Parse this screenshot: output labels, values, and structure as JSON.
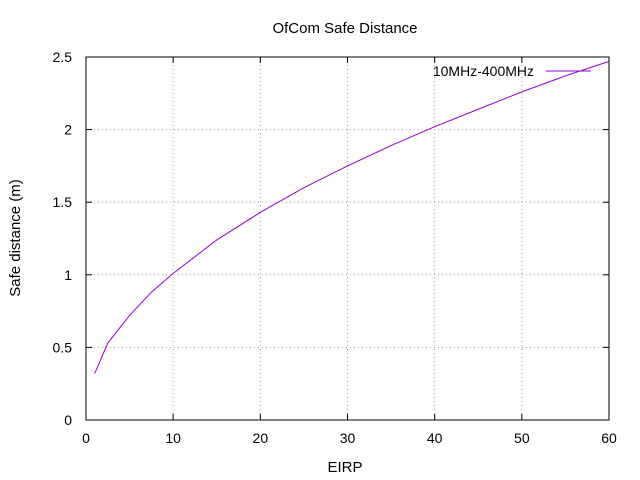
{
  "chart_data": {
    "type": "line",
    "title": "OfCom Safe Distance",
    "xlabel": "EIRP",
    "ylabel": "Safe distance (m)",
    "xlim": [
      0,
      60
    ],
    "ylim": [
      0,
      2.5
    ],
    "xticks": [
      0,
      10,
      20,
      30,
      40,
      50,
      60
    ],
    "yticks": [
      0,
      0.5,
      1,
      1.5,
      2,
      2.5
    ],
    "xtick_labels": [
      "0",
      "10",
      "20",
      "30",
      "40",
      "50",
      "60"
    ],
    "ytick_labels": [
      "0",
      "0.5",
      "1",
      "1.5",
      "2",
      "2.5"
    ],
    "grid": true,
    "legend_position": "top-right",
    "series": [
      {
        "name": "10MHz-400MHz",
        "color": "#9400d3",
        "x": [
          1,
          2.5,
          5,
          7.5,
          10,
          15,
          20,
          25,
          30,
          35,
          40,
          45,
          50,
          55,
          60
        ],
        "y": [
          0.32,
          0.53,
          0.72,
          0.88,
          1.01,
          1.24,
          1.43,
          1.6,
          1.75,
          1.89,
          2.02,
          2.14,
          2.26,
          2.37,
          2.47
        ]
      }
    ]
  }
}
